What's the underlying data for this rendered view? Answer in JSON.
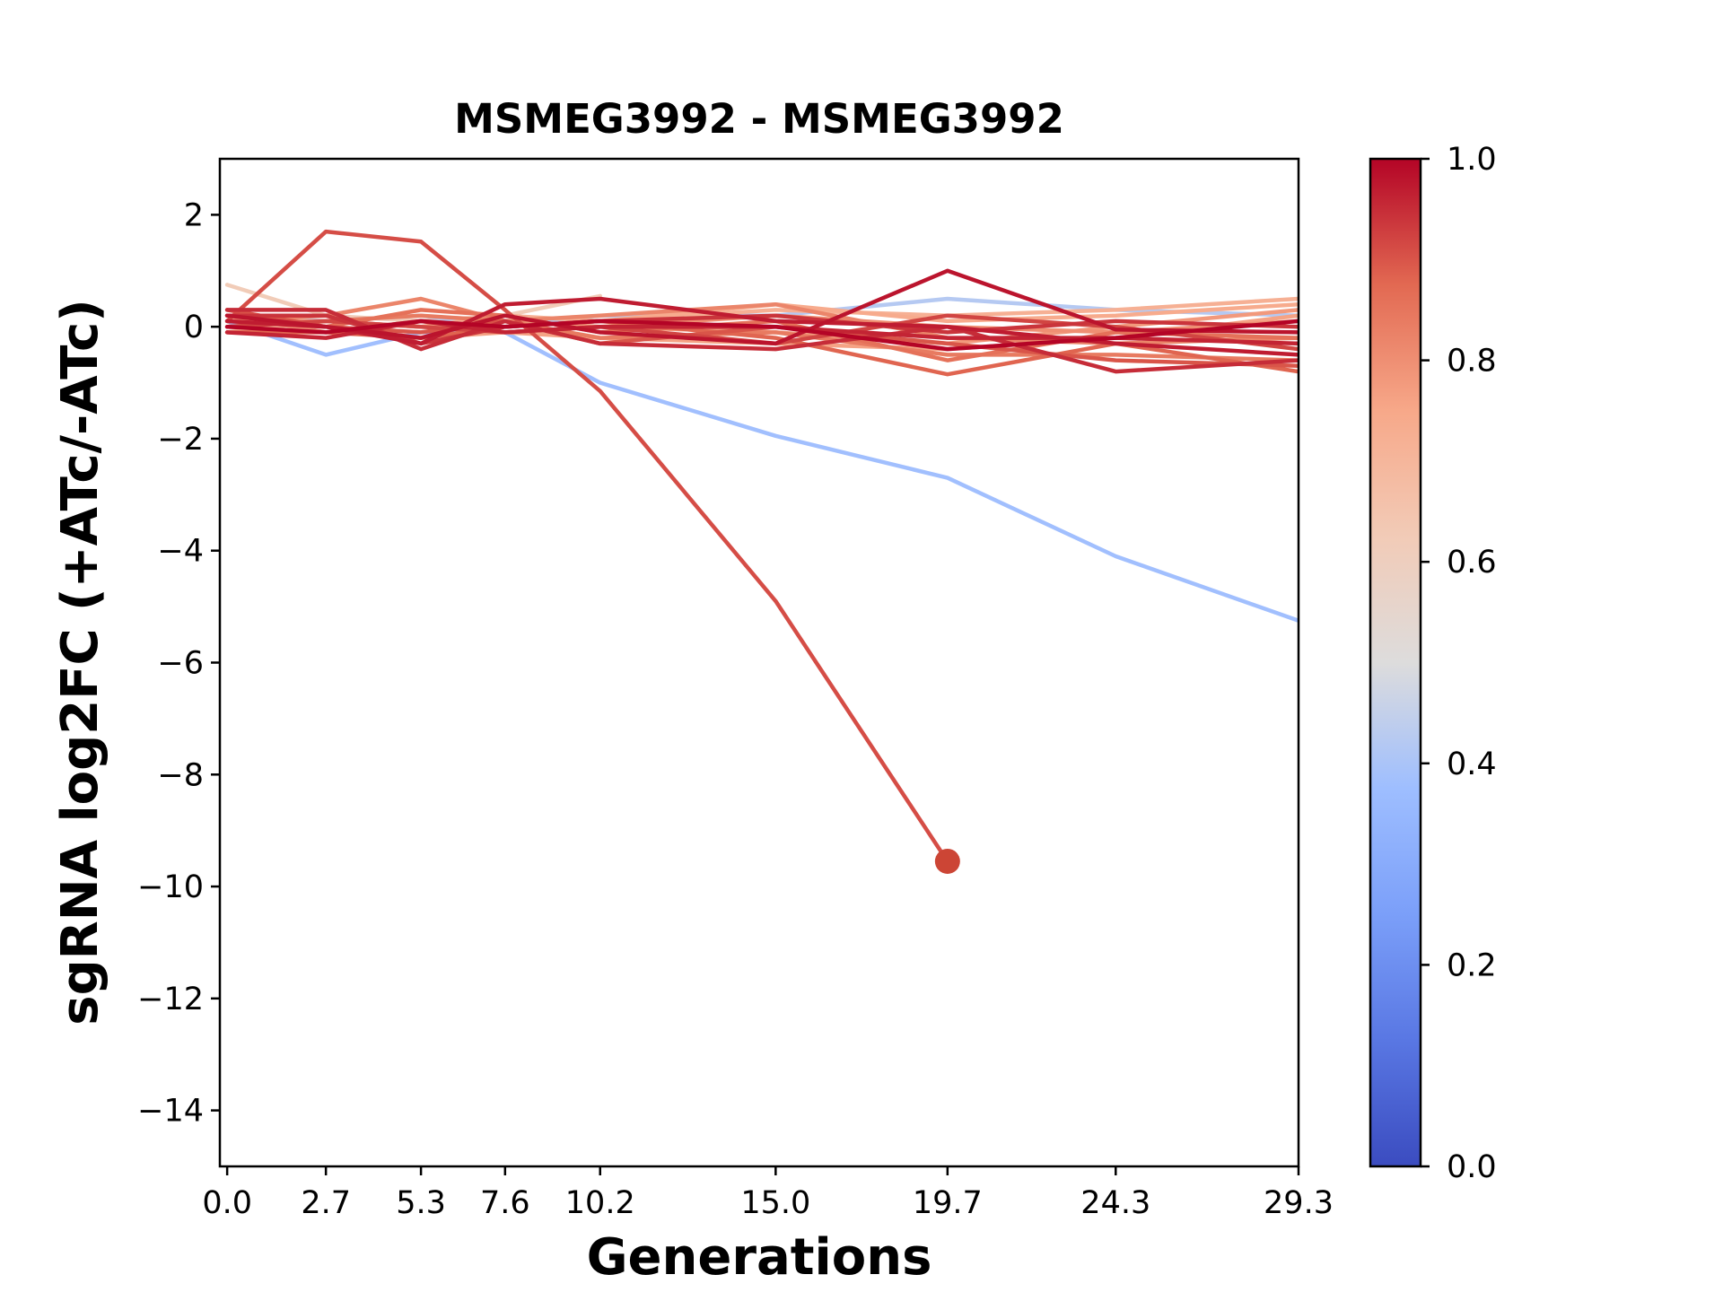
{
  "chart_data": {
    "type": "line",
    "title": "MSMEG3992 - MSMEG3992",
    "xlabel": "Generations",
    "ylabel": "sgRNA log2FC (+ATc/-ATc)",
    "x_tick_labels": [
      "0.0",
      "2.7",
      "5.3",
      "7.6",
      "10.2",
      "15.0",
      "19.7",
      "24.3",
      "29.3"
    ],
    "x": [
      0.0,
      2.7,
      5.3,
      7.6,
      10.2,
      15.0,
      19.7,
      24.3,
      29.3
    ],
    "xlim": [
      -0.2,
      29.3
    ],
    "ylim": [
      -15,
      3
    ],
    "y_ticks": [
      2,
      0,
      -2,
      -4,
      -6,
      -8,
      -10,
      -12,
      -14
    ],
    "colormap": "coolwarm",
    "colorbar": {
      "range": [
        0.0,
        1.0
      ],
      "tick_labels": [
        "0.0",
        "0.2",
        "0.4",
        "0.6",
        "0.8",
        "1.0"
      ]
    },
    "highlight_point": {
      "x": 19.7,
      "y": -9.55,
      "color": "#cc4535"
    },
    "series": [
      {
        "c": 0.62,
        "values": [
          0.75,
          0.2,
          0.1,
          0.2,
          0.55,
          null,
          null,
          null,
          null
        ]
      },
      {
        "c": 0.38,
        "values": [
          0.1,
          -0.5,
          -0.1,
          -0.1,
          -1.0,
          -1.95,
          -2.7,
          -4.1,
          -5.25
        ]
      },
      {
        "c": 0.42,
        "values": [
          0.2,
          0.1,
          0.2,
          0.0,
          0.2,
          0.2,
          0.5,
          0.3,
          0.2
        ]
      },
      {
        "c": 0.72,
        "values": [
          -0.1,
          0.1,
          0.0,
          0.2,
          0.1,
          0.3,
          0.2,
          0.3,
          0.5
        ]
      },
      {
        "c": 0.74,
        "values": [
          0.0,
          -0.1,
          0.1,
          0.0,
          0.1,
          0.4,
          0.1,
          0.2,
          0.4
        ]
      },
      {
        "c": 0.76,
        "values": [
          0.2,
          0.0,
          -0.2,
          -0.1,
          -0.2,
          -0.3,
          -0.4,
          -0.2,
          0.2
        ]
      },
      {
        "c": 0.78,
        "values": [
          0.1,
          0.1,
          0.0,
          0.1,
          0.0,
          -0.1,
          -0.3,
          0.0,
          0.3
        ]
      },
      {
        "c": 0.8,
        "values": [
          0.2,
          -0.1,
          0.1,
          -0.1,
          0.0,
          0.2,
          0.0,
          -0.1,
          0.1
        ]
      },
      {
        "c": 0.82,
        "values": [
          0.1,
          0.2,
          0.5,
          0.1,
          0.2,
          0.4,
          -0.2,
          -0.3,
          -0.2
        ]
      },
      {
        "c": 0.84,
        "values": [
          0.0,
          0.1,
          0.2,
          0.1,
          -0.2,
          -0.1,
          -0.5,
          -0.5,
          -0.6
        ]
      },
      {
        "c": 0.86,
        "values": [
          0.1,
          0.0,
          0.3,
          0.2,
          -0.1,
          0.1,
          -0.6,
          -0.1,
          -0.2
        ]
      },
      {
        "c": 0.88,
        "values": [
          -0.1,
          -0.1,
          -0.2,
          0.0,
          0.1,
          -0.2,
          -0.85,
          -0.3,
          -0.8
        ]
      },
      {
        "c": 0.9,
        "values": [
          0.3,
          0.0,
          -0.1,
          0.1,
          -0.3,
          0.0,
          -0.3,
          -0.6,
          -0.7
        ]
      },
      {
        "c": 0.91,
        "values": [
          0.1,
          1.7,
          1.52,
          0.3,
          -1.15,
          -4.9,
          -9.55,
          null,
          null
        ]
      },
      {
        "c": 0.92,
        "values": [
          0.0,
          0.1,
          0.0,
          -0.1,
          0.0,
          -0.3,
          0.2,
          0.0,
          -0.4
        ]
      },
      {
        "c": 0.94,
        "values": [
          0.2,
          0.2,
          -0.3,
          0.0,
          0.1,
          0.2,
          -0.1,
          0.1,
          0.0
        ]
      },
      {
        "c": 0.95,
        "values": [
          0.3,
          0.3,
          -0.4,
          0.1,
          -0.3,
          -0.4,
          0.0,
          -0.8,
          -0.6
        ]
      },
      {
        "c": 0.96,
        "values": [
          -0.1,
          -0.2,
          0.1,
          -0.1,
          0.0,
          0.0,
          -0.2,
          -0.2,
          -0.3
        ]
      },
      {
        "c": 0.97,
        "values": [
          0.1,
          0.0,
          -0.3,
          0.4,
          0.5,
          0.1,
          0.0,
          -0.3,
          -0.5
        ]
      },
      {
        "c": 0.98,
        "values": [
          0.2,
          0.0,
          -0.2,
          0.2,
          -0.1,
          -0.3,
          1.0,
          -0.05,
          -0.1
        ]
      },
      {
        "c": 1.0,
        "values": [
          0.0,
          -0.1,
          0.1,
          0.0,
          0.1,
          0.0,
          -0.4,
          -0.2,
          0.1
        ]
      }
    ]
  }
}
